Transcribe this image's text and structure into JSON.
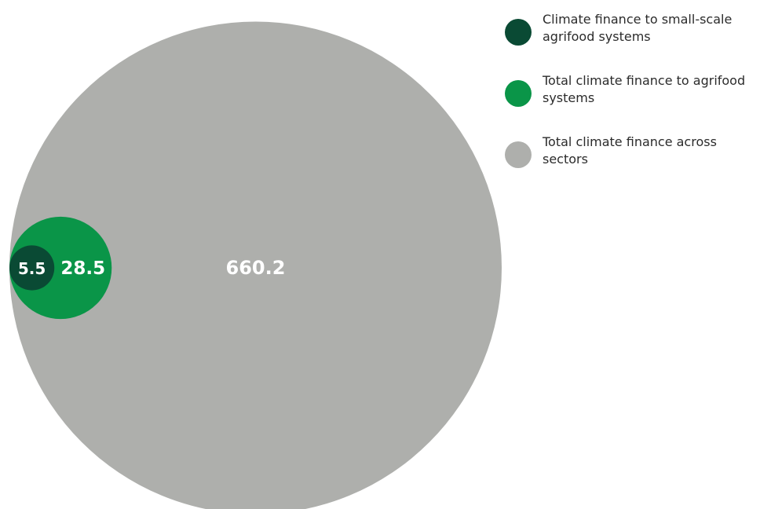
{
  "chart_data": {
    "type": "bubble",
    "title": "",
    "series": [
      {
        "name": "Total climate finance across sectors",
        "value": 660.2,
        "label": "660.2",
        "color": "#aeafac"
      },
      {
        "name": "Total climate finance to agrifood systems",
        "value": 28.5,
        "label": "28.5",
        "color": "#0a9548"
      },
      {
        "name": "Climate finance to small-scale agrifood systems",
        "value": 5.5,
        "label": "5.5",
        "color": "#0a4a34"
      }
    ],
    "legend": {
      "placement": "top-right",
      "items": [
        {
          "label": "Climate finance to small-scale agrifood systems",
          "color": "#0a4a34"
        },
        {
          "label": "Total climate finance to agrifood systems",
          "color": "#0a9548"
        },
        {
          "label": "Total climate finance across sectors",
          "color": "#aeafac"
        }
      ]
    }
  }
}
